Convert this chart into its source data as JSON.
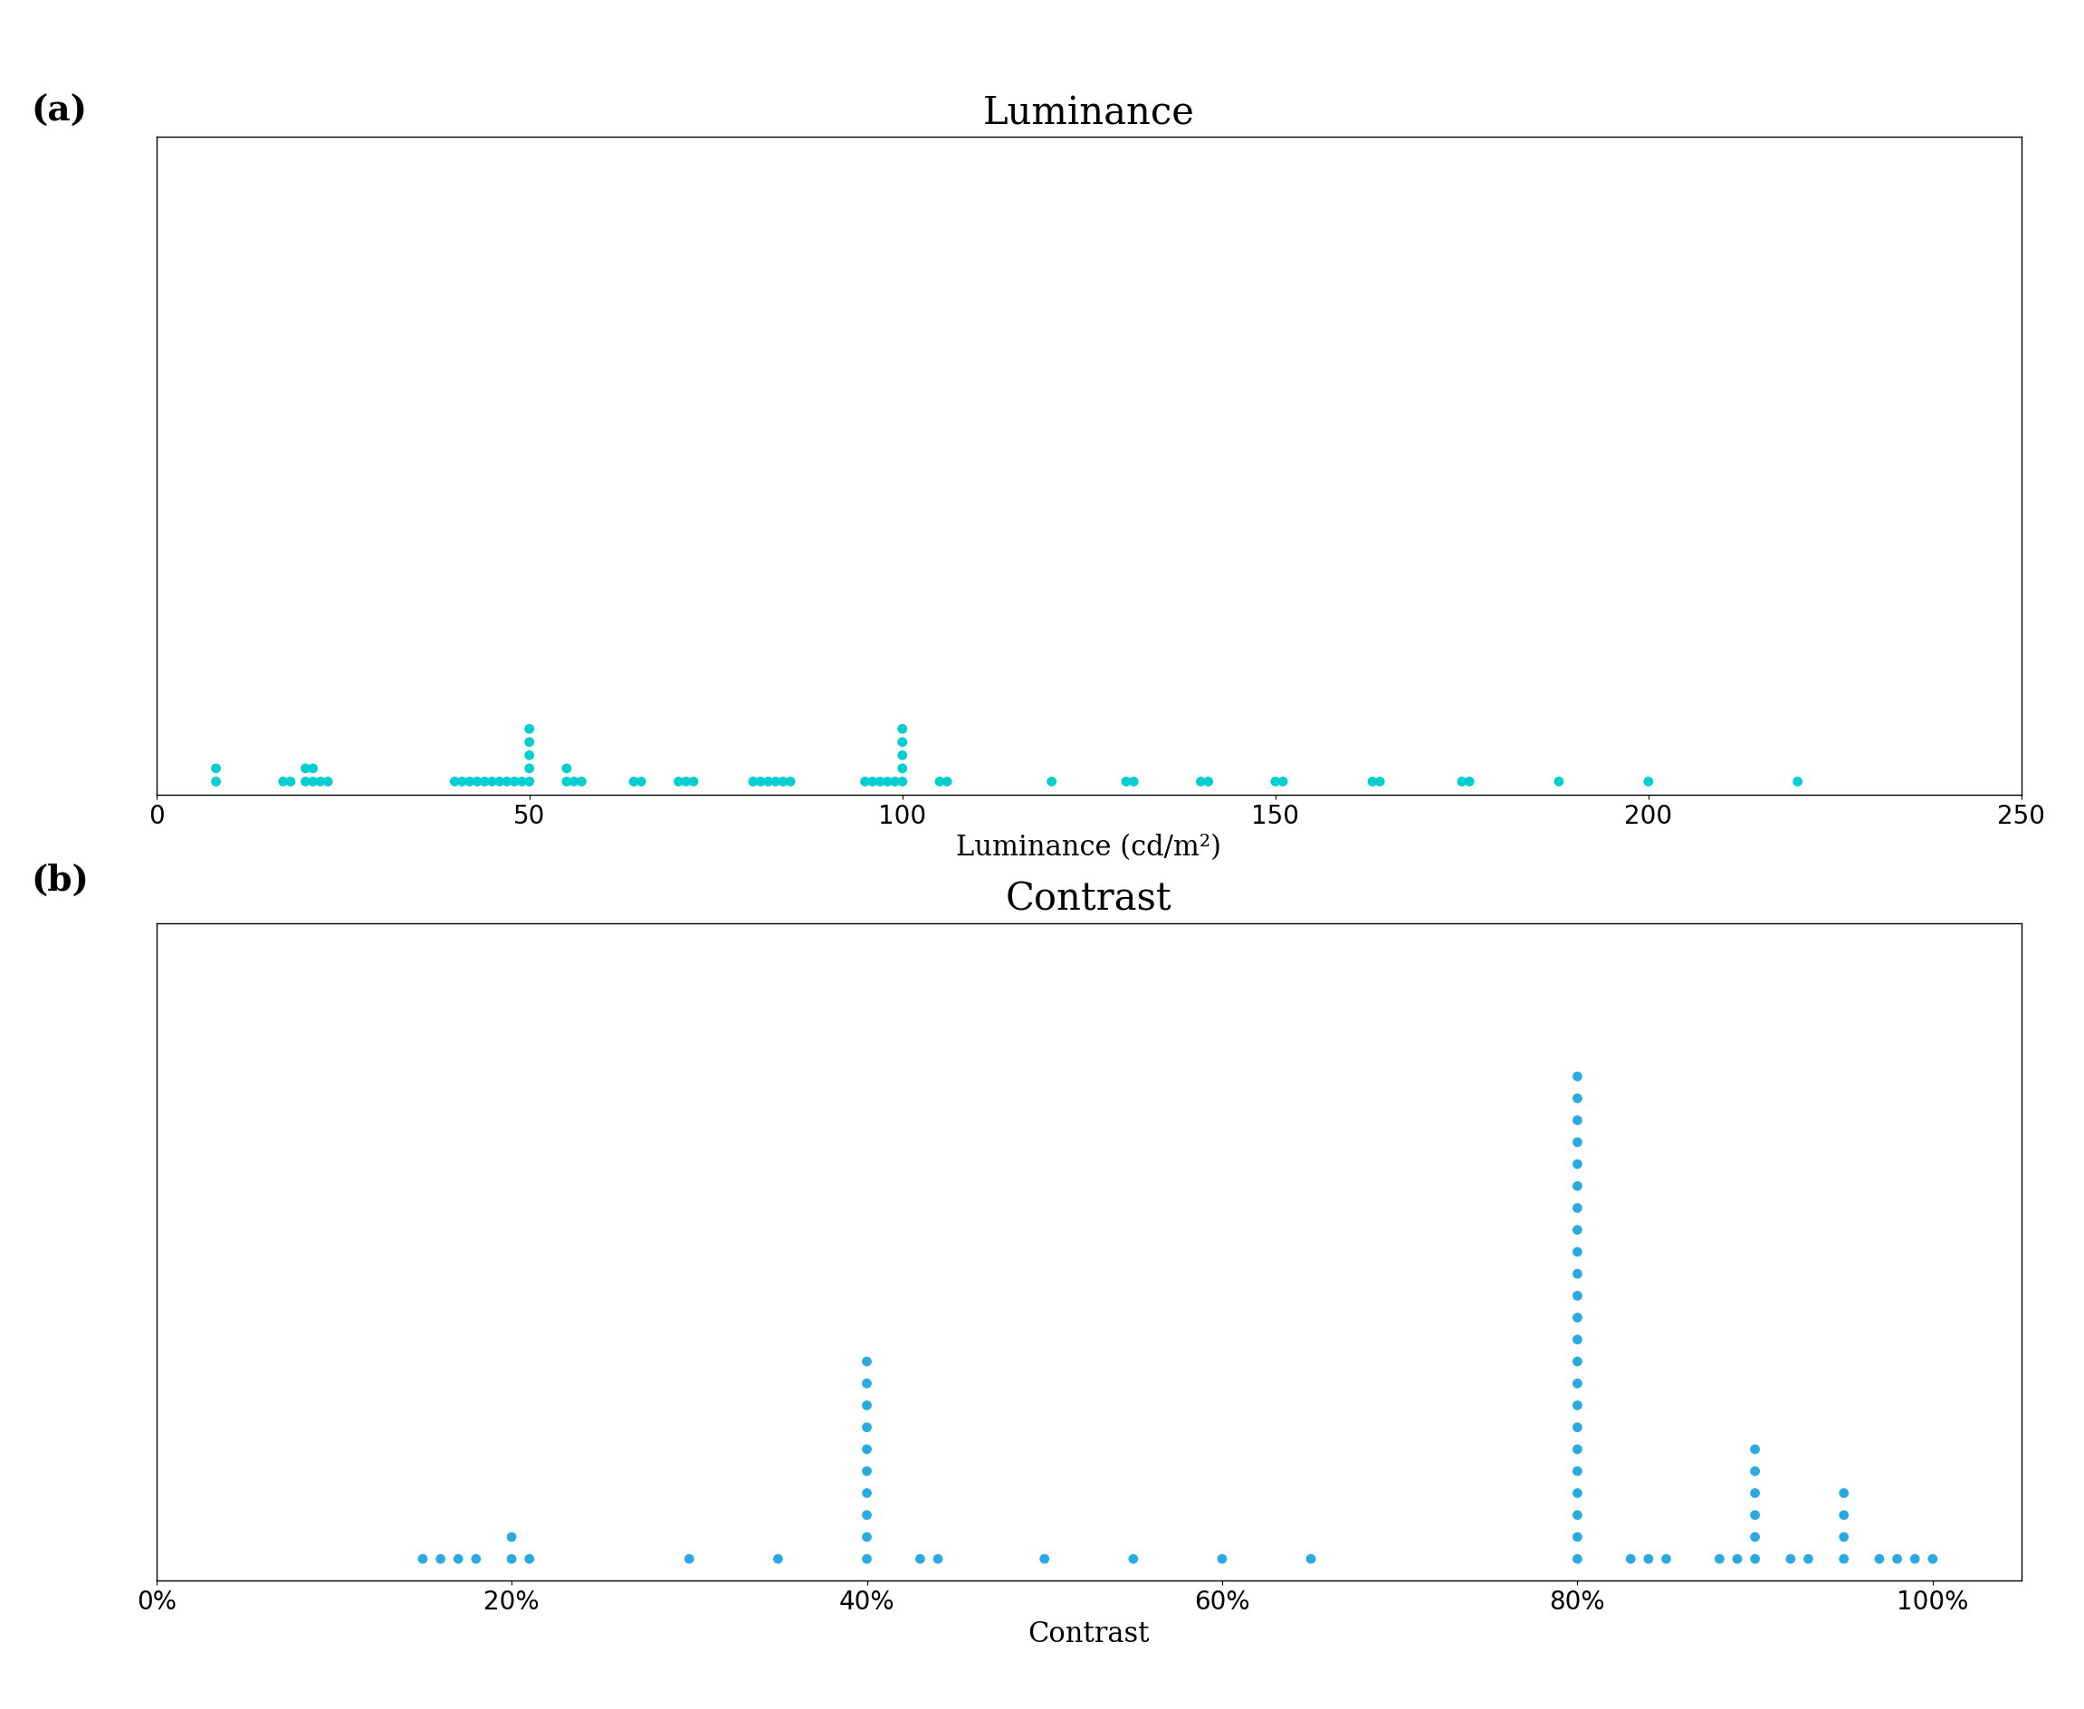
{
  "title_a": "Luminance",
  "title_b": "Contrast",
  "xlabel_a": "Luminance (cd/m²)",
  "xlabel_b": "Contrast",
  "label_a": "(a)",
  "label_b": "(b)",
  "dot_color_a": "#00CED1",
  "dot_color_b": "#29ABE2",
  "lum_data": [
    8,
    8,
    17,
    18,
    20,
    20,
    21,
    21,
    22,
    23,
    40,
    41,
    42,
    43,
    44,
    45,
    46,
    47,
    48,
    49,
    50,
    50,
    50,
    50,
    50,
    55,
    55,
    56,
    57,
    64,
    65,
    70,
    71,
    72,
    80,
    81,
    82,
    83,
    84,
    85,
    95,
    96,
    97,
    98,
    99,
    100,
    100,
    100,
    100,
    100,
    105,
    106,
    120,
    130,
    131,
    140,
    141,
    150,
    151,
    163,
    164,
    175,
    176,
    188,
    200,
    220
  ],
  "con_data": [
    15,
    16,
    17,
    18,
    20,
    20,
    21,
    30,
    35,
    40,
    40,
    40,
    40,
    40,
    40,
    40,
    40,
    40,
    40,
    43,
    44,
    50,
    55,
    60,
    65,
    80,
    80,
    80,
    80,
    80,
    80,
    80,
    80,
    80,
    80,
    80,
    80,
    80,
    80,
    80,
    80,
    80,
    80,
    80,
    80,
    80,
    80,
    80,
    83,
    84,
    85,
    88,
    89,
    90,
    90,
    90,
    90,
    90,
    90,
    92,
    93,
    95,
    95,
    95,
    95,
    97,
    98,
    99,
    100
  ]
}
